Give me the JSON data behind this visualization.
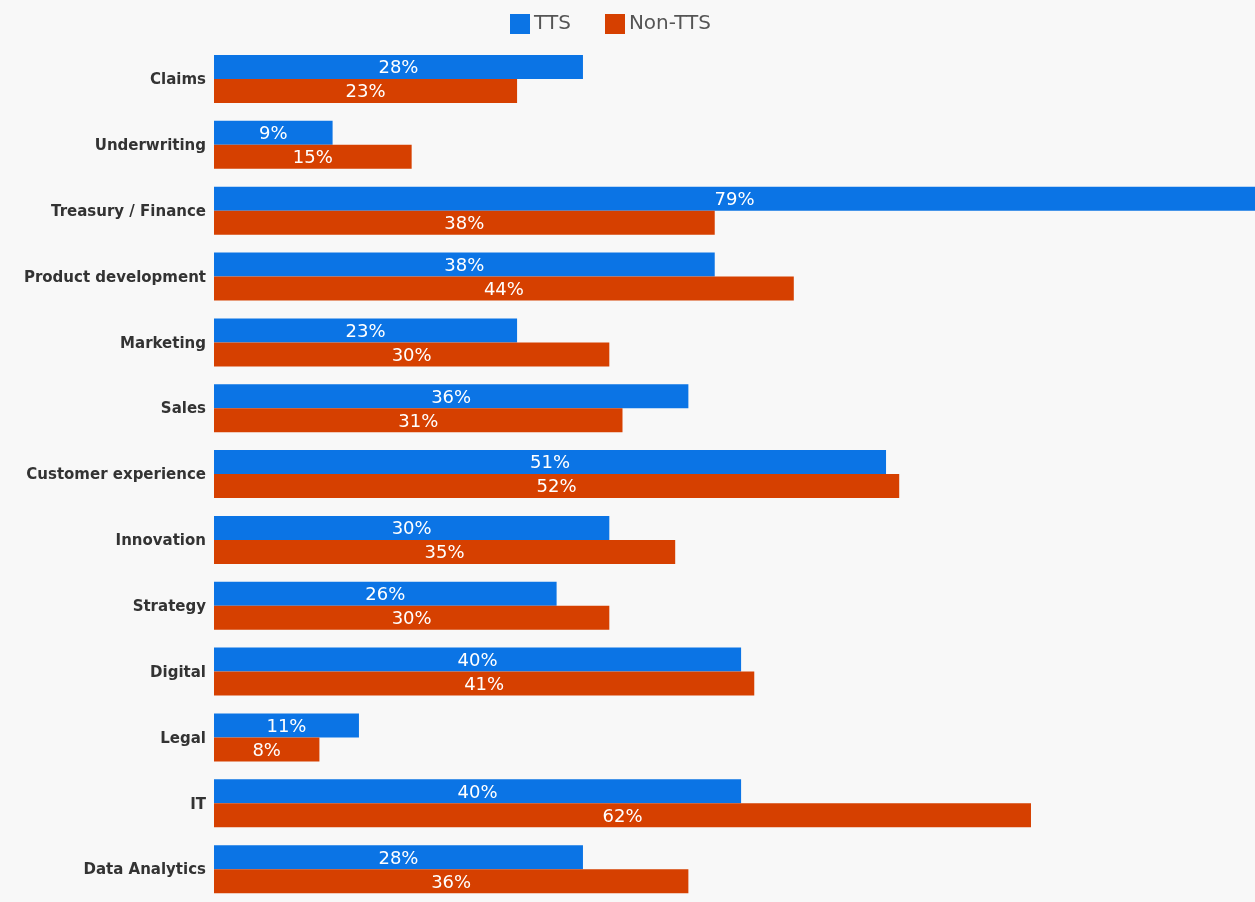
{
  "chart_data": {
    "type": "bar",
    "orientation": "horizontal",
    "categories": [
      "Claims",
      "Underwriting",
      "Treasury / Finance",
      "Product development",
      "Marketing",
      "Sales",
      "Customer experience",
      "Innovation",
      "Strategy",
      "Digital",
      "Legal",
      "IT",
      "Data Analytics"
    ],
    "series": [
      {
        "name": "TTS",
        "color": "#0b74e5",
        "values": [
          28,
          9,
          79,
          38,
          23,
          36,
          51,
          30,
          26,
          40,
          11,
          40,
          28
        ],
        "value_labels": [
          "28%",
          "9%",
          "79%",
          "38%",
          "23%",
          "36%",
          "51%",
          "30%",
          "26%",
          "40%",
          "11%",
          "40%",
          "28%"
        ]
      },
      {
        "name": "Non-TTS",
        "color": "#d64000",
        "values": [
          23,
          15,
          38,
          44,
          30,
          31,
          52,
          35,
          30,
          41,
          8,
          62,
          36
        ],
        "value_labels": [
          "23%",
          "15%",
          "38%",
          "44%",
          "30%",
          "31%",
          "52%",
          "35%",
          "30%",
          "41%",
          "8%",
          "62%",
          "36%"
        ]
      }
    ],
    "legend": "top"
  }
}
